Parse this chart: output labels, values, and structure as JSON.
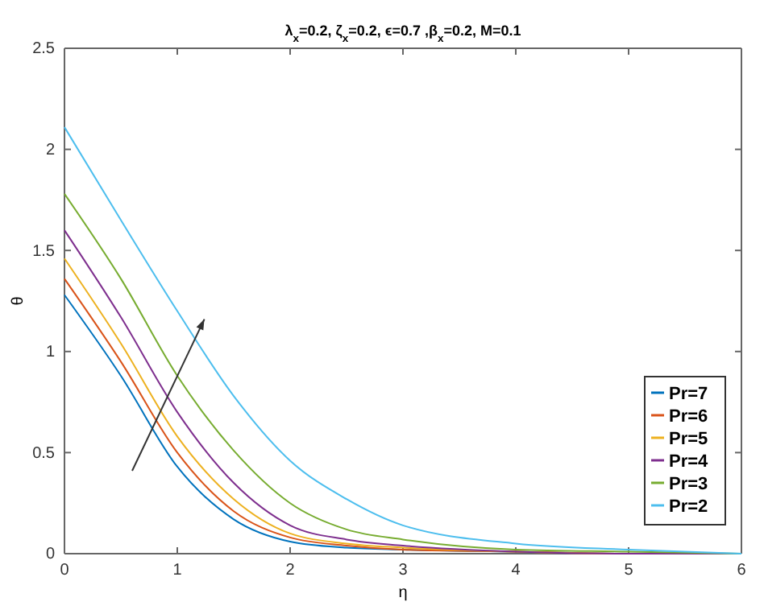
{
  "chart_data": {
    "type": "line",
    "title": "λ$_{x}$=0.2, ζ$_{x}$=0.2, ϵ=0.7 ,β$_{x}$=0.2, M=0.1",
    "xlabel": "η",
    "ylabel": "θ",
    "x": [
      0,
      0.5,
      1,
      1.5,
      2,
      2.5,
      3,
      4,
      5,
      6
    ],
    "series": [
      {
        "name": "Pr=7",
        "color": "#0072bd",
        "values": [
          1.28,
          0.88,
          0.43,
          0.17,
          0.06,
          0.03,
          0.02,
          0.01,
          0,
          0
        ]
      },
      {
        "name": "Pr=6",
        "color": "#d95319",
        "values": [
          1.36,
          0.95,
          0.5,
          0.21,
          0.08,
          0.04,
          0.02,
          0.01,
          0,
          0
        ]
      },
      {
        "name": "Pr=5",
        "color": "#edb120",
        "values": [
          1.46,
          1.04,
          0.58,
          0.27,
          0.1,
          0.05,
          0.03,
          0.01,
          0,
          0
        ]
      },
      {
        "name": "Pr=4",
        "color": "#7e2f8e",
        "values": [
          1.6,
          1.17,
          0.7,
          0.35,
          0.14,
          0.07,
          0.04,
          0.01,
          0,
          0
        ]
      },
      {
        "name": "Pr=3",
        "color": "#77ac30",
        "values": [
          1.78,
          1.36,
          0.88,
          0.51,
          0.25,
          0.12,
          0.07,
          0.02,
          0.01,
          0
        ]
      },
      {
        "name": "Pr=2",
        "color": "#4dbeee",
        "values": [
          2.11,
          1.65,
          1.2,
          0.78,
          0.46,
          0.27,
          0.14,
          0.05,
          0.02,
          0
        ]
      }
    ],
    "xlim": [
      0,
      6
    ],
    "xticks": [
      0,
      1,
      2,
      3,
      4,
      5,
      6
    ],
    "ylim": [
      0,
      2.5
    ],
    "yticks": [
      0,
      0.5,
      1,
      1.5,
      2,
      2.5
    ],
    "legend": "bottom right",
    "grid": false,
    "marker": "none",
    "line_style": "solid"
  }
}
